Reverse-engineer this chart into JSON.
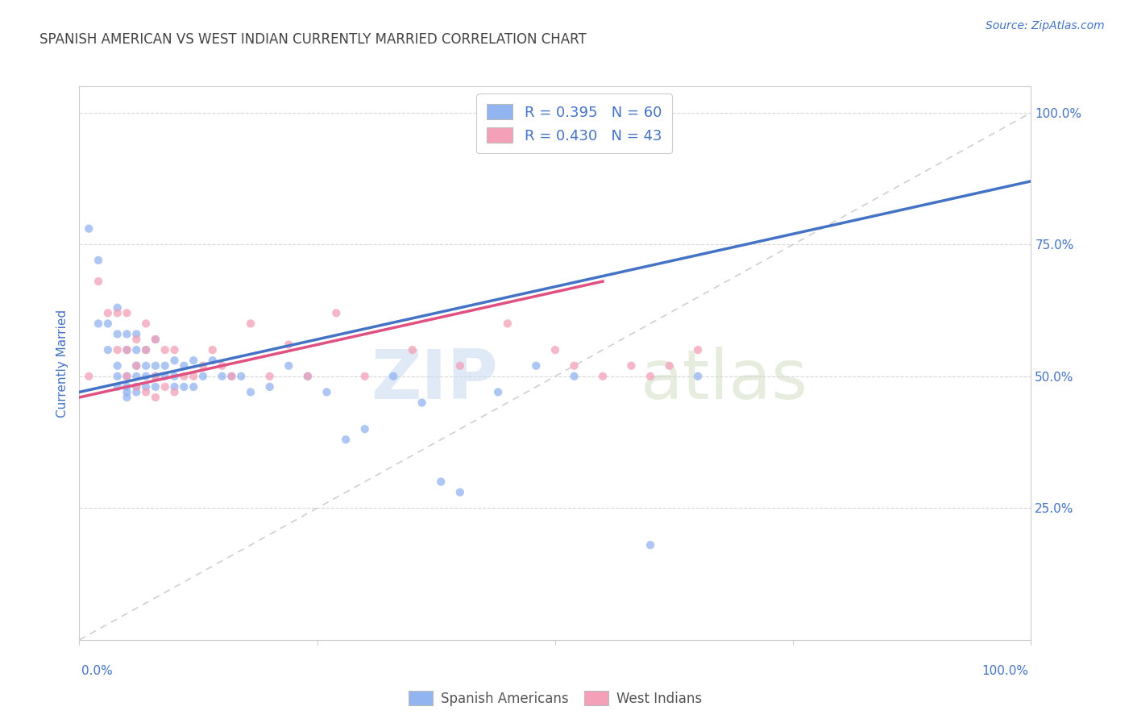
{
  "title": "SPANISH AMERICAN VS WEST INDIAN CURRENTLY MARRIED CORRELATION CHART",
  "source": "Source: ZipAtlas.com",
  "ylabel": "Currently Married",
  "xlim": [
    0,
    1
  ],
  "ylim": [
    0,
    1.05
  ],
  "yticks": [
    0.25,
    0.5,
    0.75,
    1.0
  ],
  "ytick_labels": [
    "25.0%",
    "50.0%",
    "75.0%",
    "100.0%"
  ],
  "xtick_first": "0.0%",
  "xtick_last": "100.0%",
  "legend_label_blue": "R = 0.395   N = 60",
  "legend_label_pink": "R = 0.430   N = 43",
  "legend_bottom_blue": "Spanish Americans",
  "legend_bottom_pink": "West Indians",
  "title_color": "#444444",
  "source_color": "#4472c4",
  "tick_color": "#4472c4",
  "blue_scatter_color": "#92b4f0",
  "pink_scatter_color": "#f4a0b8",
  "blue_line_color": "#4472c4",
  "pink_line_color": "#e05080",
  "diagonal_color": "#d0d0d0",
  "grid_color": "#d8d8d8",
  "background_color": "#ffffff",
  "blue_line_x0": 0.0,
  "blue_line_y0": 0.47,
  "blue_line_x1": 1.0,
  "blue_line_y1": 0.87,
  "pink_line_x0": 0.0,
  "pink_line_y0": 0.46,
  "pink_line_x1": 0.55,
  "pink_line_y1": 0.68,
  "watermark_zip": "ZIP",
  "watermark_atlas": "atlas",
  "blue_points_x": [
    0.01,
    0.02,
    0.02,
    0.03,
    0.03,
    0.04,
    0.04,
    0.04,
    0.04,
    0.04,
    0.05,
    0.05,
    0.05,
    0.05,
    0.05,
    0.05,
    0.06,
    0.06,
    0.06,
    0.06,
    0.06,
    0.06,
    0.07,
    0.07,
    0.07,
    0.07,
    0.08,
    0.08,
    0.08,
    0.08,
    0.09,
    0.09,
    0.1,
    0.1,
    0.1,
    0.11,
    0.11,
    0.12,
    0.12,
    0.13,
    0.14,
    0.15,
    0.16,
    0.17,
    0.18,
    0.2,
    0.22,
    0.24,
    0.26,
    0.28,
    0.3,
    0.33,
    0.36,
    0.38,
    0.4,
    0.44,
    0.48,
    0.52,
    0.6,
    0.65
  ],
  "blue_points_y": [
    0.78,
    0.72,
    0.6,
    0.6,
    0.55,
    0.63,
    0.58,
    0.52,
    0.5,
    0.48,
    0.58,
    0.55,
    0.5,
    0.48,
    0.47,
    0.46,
    0.58,
    0.55,
    0.52,
    0.5,
    0.48,
    0.47,
    0.55,
    0.52,
    0.5,
    0.48,
    0.57,
    0.52,
    0.5,
    0.48,
    0.52,
    0.5,
    0.53,
    0.5,
    0.48,
    0.52,
    0.48,
    0.53,
    0.48,
    0.5,
    0.53,
    0.5,
    0.5,
    0.5,
    0.47,
    0.48,
    0.52,
    0.5,
    0.47,
    0.38,
    0.4,
    0.5,
    0.45,
    0.3,
    0.28,
    0.47,
    0.52,
    0.5,
    0.18,
    0.5
  ],
  "pink_points_x": [
    0.01,
    0.02,
    0.03,
    0.04,
    0.04,
    0.05,
    0.05,
    0.05,
    0.06,
    0.06,
    0.06,
    0.07,
    0.07,
    0.07,
    0.08,
    0.08,
    0.08,
    0.09,
    0.09,
    0.1,
    0.1,
    0.11,
    0.12,
    0.13,
    0.14,
    0.15,
    0.16,
    0.18,
    0.2,
    0.22,
    0.24,
    0.27,
    0.3,
    0.35,
    0.4,
    0.45,
    0.5,
    0.52,
    0.55,
    0.58,
    0.6,
    0.62,
    0.65
  ],
  "pink_points_y": [
    0.5,
    0.68,
    0.62,
    0.62,
    0.55,
    0.62,
    0.55,
    0.5,
    0.57,
    0.52,
    0.48,
    0.6,
    0.55,
    0.47,
    0.57,
    0.5,
    0.46,
    0.55,
    0.48,
    0.55,
    0.47,
    0.5,
    0.5,
    0.52,
    0.55,
    0.52,
    0.5,
    0.6,
    0.5,
    0.56,
    0.5,
    0.62,
    0.5,
    0.55,
    0.52,
    0.6,
    0.55,
    0.52,
    0.5,
    0.52,
    0.5,
    0.52,
    0.55
  ]
}
